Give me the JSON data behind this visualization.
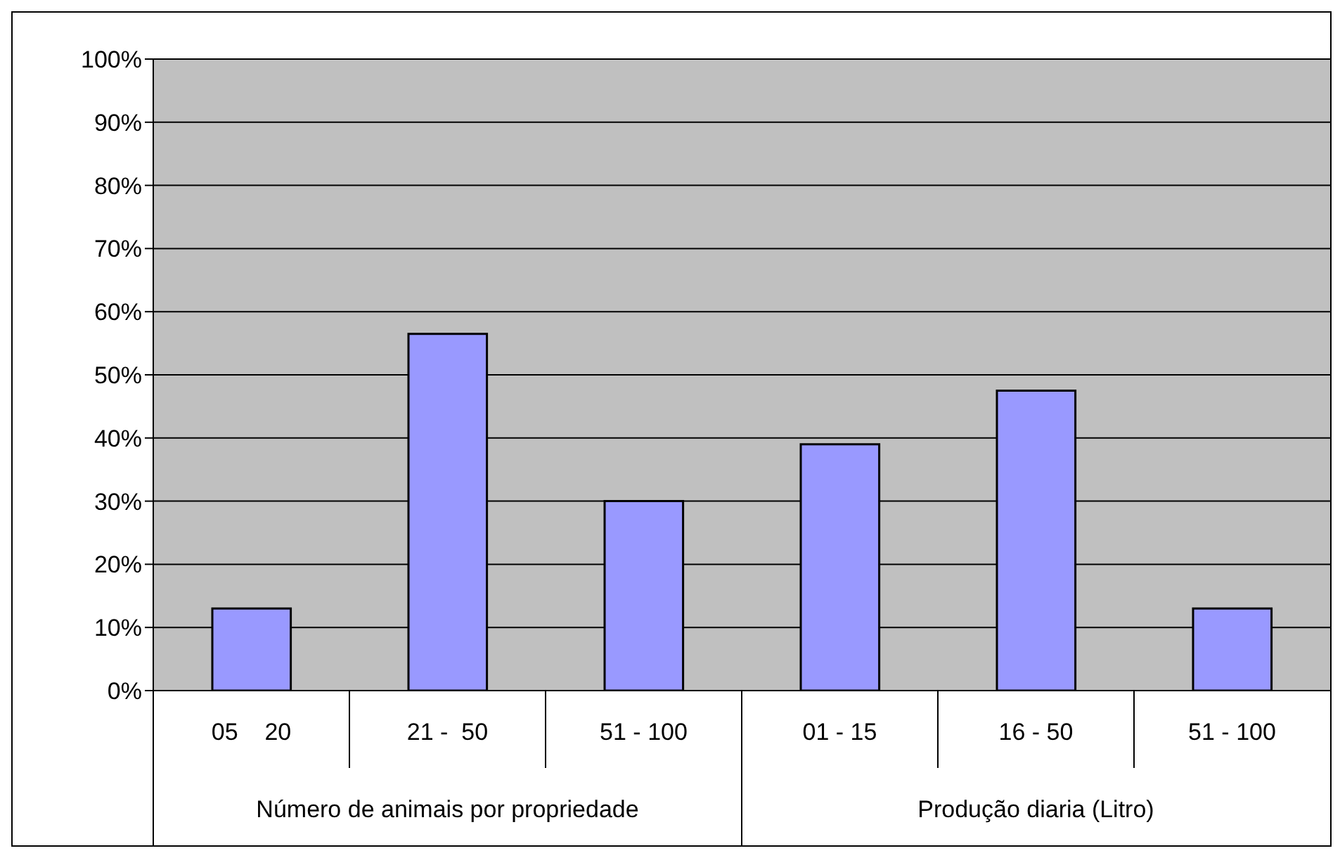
{
  "chart_data": {
    "type": "bar",
    "categories": [
      "05    20",
      "21 -  50",
      "51 - 100",
      "01 - 15",
      "16 - 50",
      "51 - 100"
    ],
    "values": [
      13,
      56.5,
      30,
      39,
      47.5,
      13
    ],
    "color": "#9999ff",
    "ylim": [
      0,
      100
    ],
    "yticks": [
      {
        "value": 0,
        "label": "0%"
      },
      {
        "value": 10,
        "label": "10%"
      },
      {
        "value": 20,
        "label": "20%"
      },
      {
        "value": 30,
        "label": "30%"
      },
      {
        "value": 40,
        "label": "40%"
      },
      {
        "value": 50,
        "label": "50%"
      },
      {
        "value": 60,
        "label": "60%"
      },
      {
        "value": 70,
        "label": "70%"
      },
      {
        "value": 80,
        "label": "80%"
      },
      {
        "value": 90,
        "label": "90%"
      },
      {
        "value": 100,
        "label": "100%"
      }
    ],
    "grid": "y",
    "annotations": [
      "Número de animais por propriedade",
      "Produção diaria (Litro)"
    ]
  }
}
